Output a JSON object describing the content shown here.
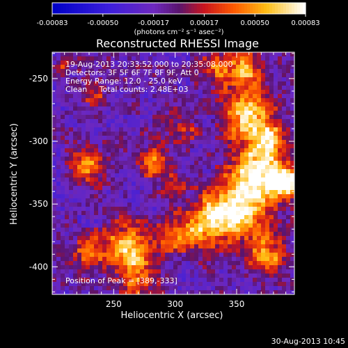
{
  "chart_data": {
    "type": "heatmap",
    "title": "Reconstructed RHESSI Image",
    "xlabel": "Heliocentric X (arcsec)",
    "ylabel": "Heliocentric Y (arcsec)",
    "xlim": [
      200,
      397
    ],
    "ylim": [
      -422,
      -229
    ],
    "x_ticks": [
      250,
      300,
      350
    ],
    "y_ticks": [
      -250,
      -300,
      -350,
      -400
    ],
    "colorbar": {
      "ticks": [
        "-0.00083",
        "-0.00050",
        "-0.00017",
        "0.00017",
        "0.00050",
        "0.00083"
      ],
      "range": [
        -0.00083,
        0.00083
      ],
      "unit_label": "(photons cm⁻² s⁻¹ asec⁻²)",
      "colormap": "blue-purple-red-yellow-white"
    },
    "annotations": [
      "19-Aug-2013 20:33:52.000 to 20:35:08.000",
      "Detectors: 3F 5F 6F 7F 8F 9F, Att 0",
      "Energy Range: 12.0 - 25.0 keV",
      "Clean     Total counts: 2.48E+03"
    ],
    "peak_label": "Position of Peak = [389,-333]",
    "peak": [
      389,
      -333
    ],
    "features": [
      {
        "x": 355,
        "y": -245,
        "sigma": 12,
        "amp": 0.55
      },
      {
        "x": 360,
        "y": -280,
        "sigma": 14,
        "amp": 0.65
      },
      {
        "x": 375,
        "y": -300,
        "sigma": 10,
        "amp": 0.55
      },
      {
        "x": 365,
        "y": -325,
        "sigma": 14,
        "amp": 0.75
      },
      {
        "x": 389,
        "y": -333,
        "sigma": 9,
        "amp": 1.0
      },
      {
        "x": 350,
        "y": -355,
        "sigma": 16,
        "amp": 0.8
      },
      {
        "x": 325,
        "y": -365,
        "sigma": 12,
        "amp": 0.6
      },
      {
        "x": 300,
        "y": -375,
        "sigma": 11,
        "amp": 0.45
      },
      {
        "x": 375,
        "y": -390,
        "sigma": 12,
        "amp": 0.5
      },
      {
        "x": 260,
        "y": -385,
        "sigma": 13,
        "amp": 0.65
      },
      {
        "x": 230,
        "y": -390,
        "sigma": 9,
        "amp": 0.45
      },
      {
        "x": 270,
        "y": -410,
        "sigma": 12,
        "amp": 0.4
      },
      {
        "x": 228,
        "y": -320,
        "sigma": 9,
        "amp": 0.55
      },
      {
        "x": 282,
        "y": -318,
        "sigma": 9,
        "amp": 0.5
      },
      {
        "x": 305,
        "y": -290,
        "sigma": 8,
        "amp": 0.35
      },
      {
        "x": 235,
        "y": -265,
        "sigma": 7,
        "amp": 0.35
      },
      {
        "x": 300,
        "y": -335,
        "sigma": 7,
        "amp": 0.3
      },
      {
        "x": 210,
        "y": -240,
        "sigma": 6,
        "amp": 0.3
      },
      {
        "x": 330,
        "y": -240,
        "sigma": 8,
        "amp": 0.4
      }
    ],
    "background": 0.15
  },
  "footer_date": "30-Aug-2013 10:45"
}
